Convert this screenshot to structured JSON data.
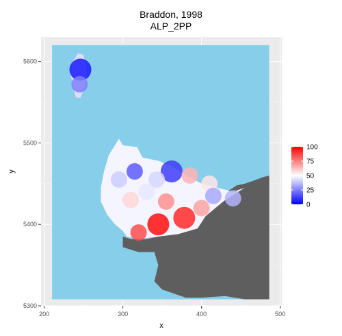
{
  "title_line1": "Braddon, 1998",
  "title_line2": "ALP_2PP",
  "chart_data": {
    "type": "heatmap",
    "title": "Braddon, 1998",
    "subtitle": "ALP_2PP",
    "xlabel": "x",
    "ylabel": "y",
    "xlim": [
      196,
      502
    ],
    "ylim": [
      5300,
      5630
    ],
    "x_ticks": [
      200,
      300,
      400,
      500
    ],
    "y_ticks": [
      5300,
      5400,
      5500,
      5600
    ],
    "grid": true,
    "panel_background": "#ebebeb",
    "sea_color": "#87ceeb",
    "land_color": "#5e5e5e",
    "legend": {
      "position": "right",
      "ticks": [
        0,
        25,
        50,
        75,
        100
      ],
      "low_color": "#0000ff",
      "mid_color": "#ffffff",
      "high_color": "#ff0000",
      "midpoint": 50
    },
    "hot_spots": [
      {
        "x": 246,
        "y": 5590,
        "value": 5
      },
      {
        "x": 245,
        "y": 5572,
        "value": 25
      },
      {
        "x": 315,
        "y": 5465,
        "value": 18
      },
      {
        "x": 362,
        "y": 5465,
        "value": 12
      },
      {
        "x": 343,
        "y": 5455,
        "value": 42
      },
      {
        "x": 295,
        "y": 5455,
        "value": 40
      },
      {
        "x": 385,
        "y": 5460,
        "value": 65
      },
      {
        "x": 410,
        "y": 5450,
        "value": 55
      },
      {
        "x": 415,
        "y": 5435,
        "value": 33
      },
      {
        "x": 440,
        "y": 5432,
        "value": 35
      },
      {
        "x": 330,
        "y": 5440,
        "value": 45
      },
      {
        "x": 310,
        "y": 5430,
        "value": 58
      },
      {
        "x": 355,
        "y": 5428,
        "value": 72
      },
      {
        "x": 400,
        "y": 5420,
        "value": 68
      },
      {
        "x": 345,
        "y": 5400,
        "value": 97
      },
      {
        "x": 378,
        "y": 5408,
        "value": 92
      },
      {
        "x": 320,
        "y": 5390,
        "value": 85
      }
    ]
  }
}
